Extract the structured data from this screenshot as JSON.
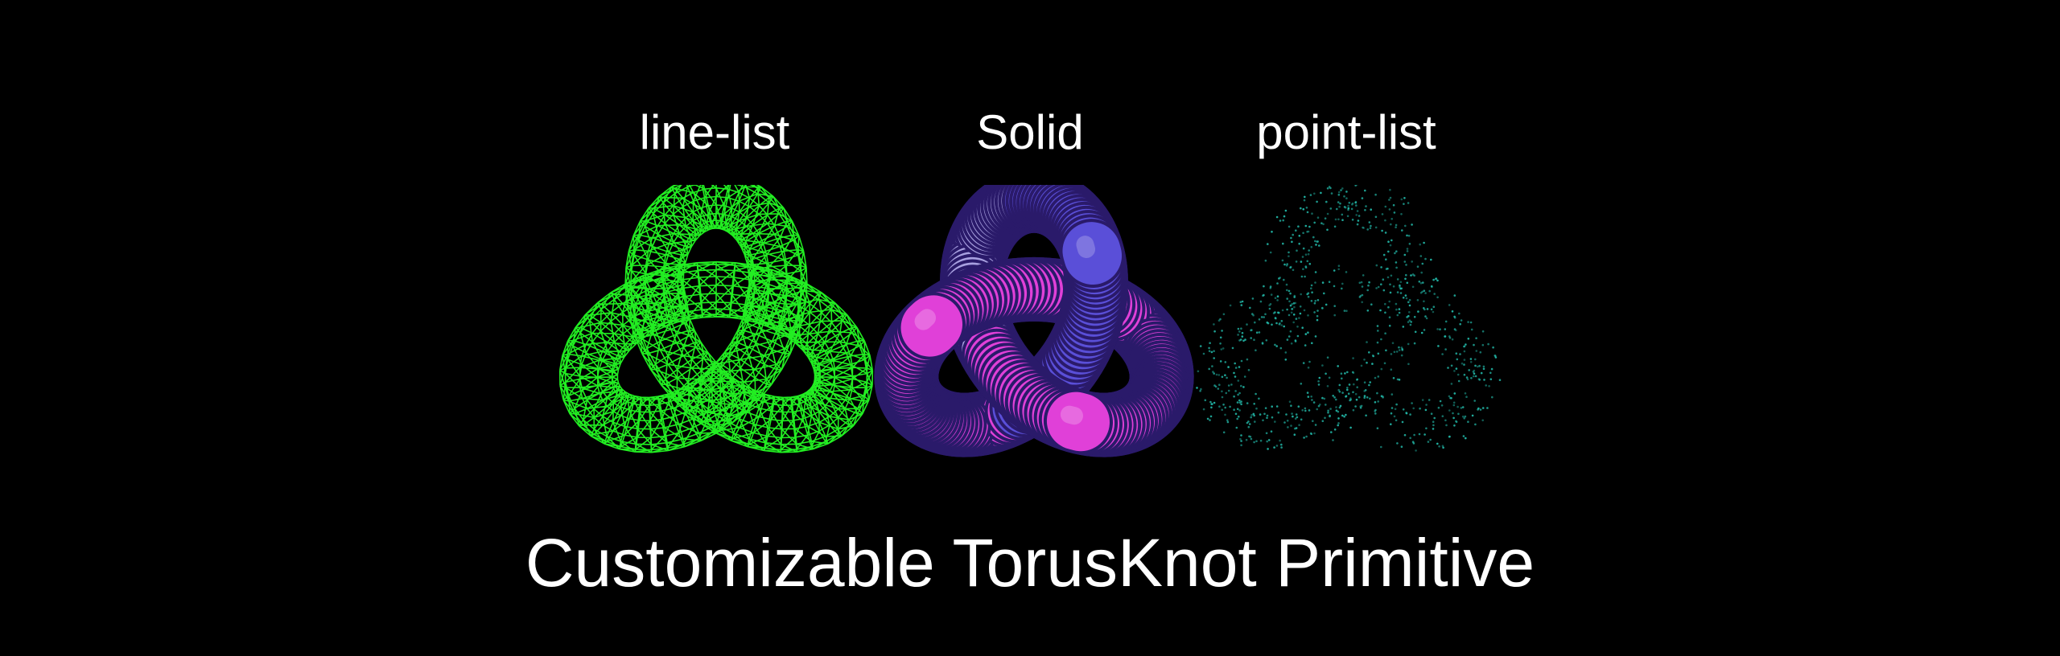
{
  "labels": {
    "wireframe": "line-list",
    "solid": "Solid",
    "points": "point-list"
  },
  "title": "Customizable TorusKnot Primitive",
  "colors": {
    "background": "#000000",
    "text": "#ffffff",
    "wireframe": "#22ee22",
    "solid_blue": "#5a4fd8",
    "solid_magenta": "#e040d8",
    "solid_lavender": "#a8a0e0",
    "points": "#22b8a8"
  }
}
